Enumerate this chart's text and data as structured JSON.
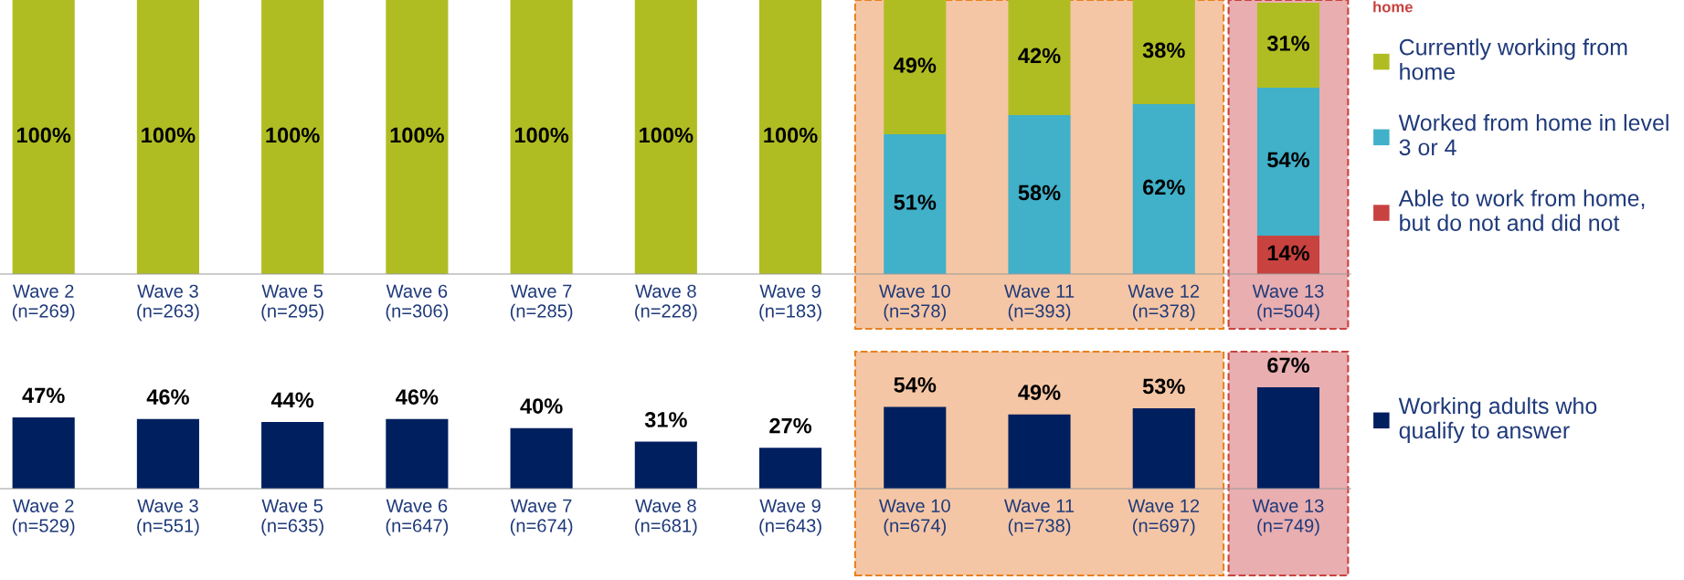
{
  "chart_data": [
    {
      "type": "bar",
      "stacked": true,
      "legend": "right",
      "grid": false,
      "tick_labels": "x",
      "annotations": [
        "home"
      ],
      "categories": [
        "Wave 2\n(n=269)",
        "Wave 3\n(n=263)",
        "Wave 5\n(n=295)",
        "Wave 6\n(n=306)",
        "Wave 7\n(n=285)",
        "Wave 8\n(n=228)",
        "Wave 9\n(n=183)",
        "Wave 10\n(n=378)",
        "Wave 11\n(n=393)",
        "Wave 12\n(n=378)",
        "Wave 13\n(n=504)"
      ],
      "series": [
        {
          "name": "Able to work from home, but do not and did not",
          "color": "#c8423f",
          "values": [
            null,
            null,
            null,
            null,
            null,
            null,
            null,
            null,
            null,
            null,
            14
          ],
          "value_labels": [
            null,
            null,
            null,
            null,
            null,
            null,
            null,
            null,
            null,
            null,
            "14%"
          ]
        },
        {
          "name": "Worked from home in level 3 or 4",
          "color": "#41b0c9",
          "values": [
            null,
            null,
            null,
            null,
            null,
            null,
            null,
            51,
            58,
            62,
            54
          ],
          "value_labels": [
            null,
            null,
            null,
            null,
            null,
            null,
            null,
            "51%",
            "58%",
            "62%",
            "54%"
          ]
        },
        {
          "name": "Currently working from home",
          "color": "#b0bd22",
          "values": [
            100,
            100,
            100,
            100,
            100,
            100,
            100,
            49,
            42,
            38,
            31
          ],
          "value_labels": [
            "100%",
            "100%",
            "100%",
            "100%",
            "100%",
            "100%",
            "100%",
            "49%",
            "42%",
            "38%",
            "31%"
          ]
        }
      ],
      "bands": [
        {
          "axis": "x",
          "from": "Wave 10\n(n=378)",
          "to": "Wave 12\n(n=378)",
          "color": "#f5c6a5"
        },
        {
          "axis": "x",
          "from": "Wave 13\n(n=504)",
          "to": "Wave 13\n(n=504)",
          "color": "#e8aeb0"
        }
      ]
    },
    {
      "type": "bar",
      "legend": "right",
      "grid": false,
      "tick_labels": "x",
      "categories": [
        "Wave 2\n(n=529)",
        "Wave 3\n(n=551)",
        "Wave 5\n(n=635)",
        "Wave 6\n(n=647)",
        "Wave 7\n(n=674)",
        "Wave 8\n(n=681)",
        "Wave 9\n(n=643)",
        "Wave 10\n(n=674)",
        "Wave 11\n(n=738)",
        "Wave 12\n(n=697)",
        "Wave 13\n(n=749)"
      ],
      "series": [
        {
          "name": "Working adults who qualify to answer",
          "color": "#001f5f",
          "values": [
            47,
            46,
            44,
            46,
            40,
            31,
            27,
            54,
            49,
            53,
            67
          ],
          "value_labels": [
            "47%",
            "46%",
            "44%",
            "46%",
            "40%",
            "31%",
            "27%",
            "54%",
            "49%",
            "53%",
            "67%"
          ]
        }
      ],
      "bands": [
        {
          "axis": "x",
          "from": "Wave 10\n(n=674)",
          "to": "Wave 12\n(n=697)",
          "color": "#f5c6a5"
        },
        {
          "axis": "x",
          "from": "Wave 13\n(n=749)",
          "to": "Wave 13\n(n=749)",
          "color": "#e8aeb0"
        }
      ]
    }
  ]
}
